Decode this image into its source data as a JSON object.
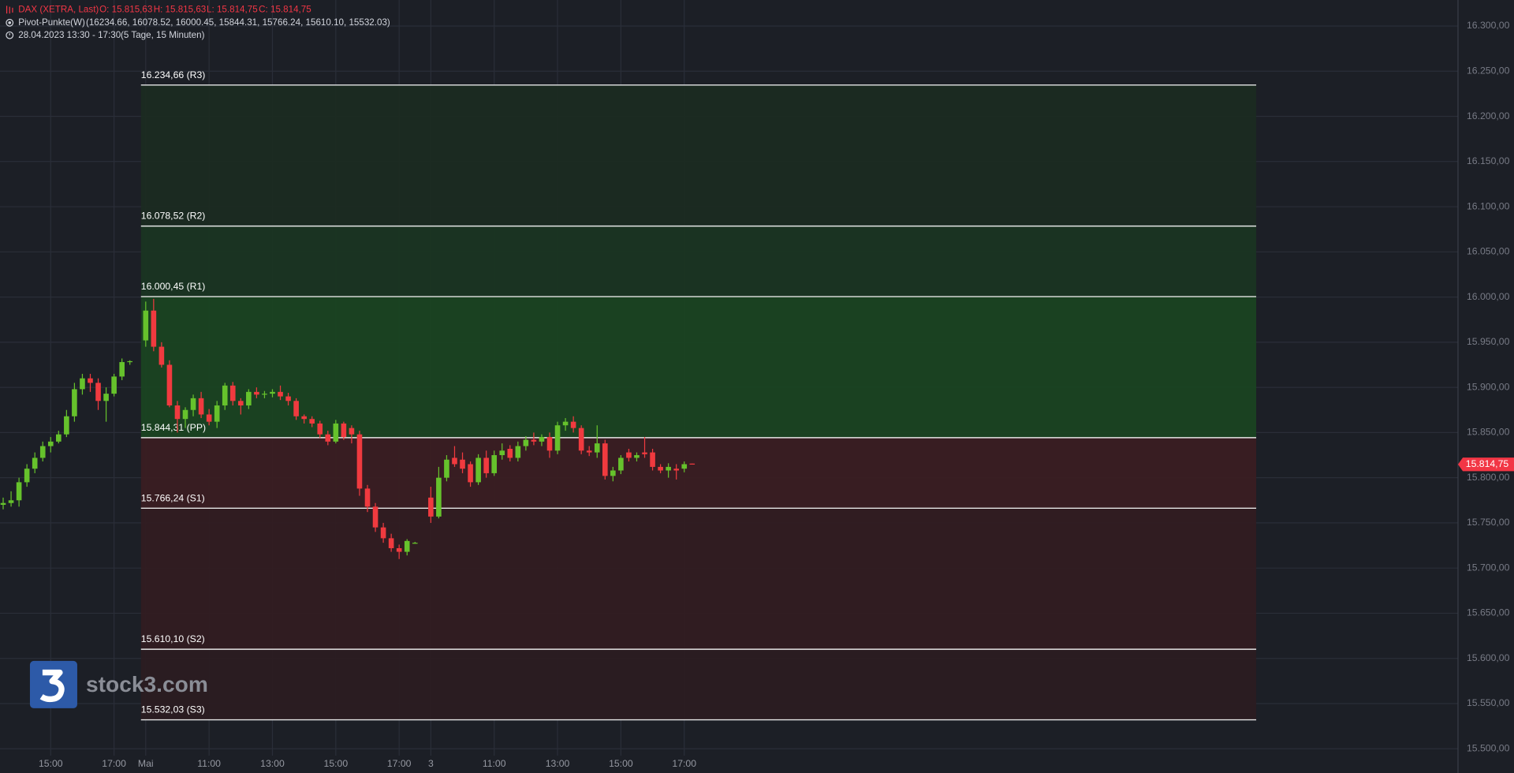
{
  "header": {
    "symbol": "DAX (XETRA, Last)",
    "open": "O: 15.815,63",
    "high": "H: 15.815,63",
    "low": "L: 15.814,75",
    "close": "C: 15.814,75",
    "indicator": "Pivot-Punkte(W)",
    "indicator_values": "(16234.66,  16078.52,  16000.45,  15844.31,  15766.24,  15610.10,  15532.03)",
    "range": "28.04.2023 13:30 - 17:30",
    "period": "(5 Tage, 15 Minuten)"
  },
  "logo": "stock3.com",
  "chart_data": {
    "type": "candlestick",
    "up_color": "#66c22c",
    "down_color": "#f03a3f",
    "grid": true,
    "xlim": [
      -18.4,
      165.7
    ],
    "ylim": [
      15492.4,
      16328.8
    ],
    "xticks": [
      {
        "value": -12,
        "label": "15:00"
      },
      {
        "value": -4,
        "label": "17:00"
      },
      {
        "value": 0,
        "label": "Mai"
      },
      {
        "value": 8,
        "label": "11:00"
      },
      {
        "value": 16,
        "label": "13:00"
      },
      {
        "value": 24,
        "label": "15:00"
      },
      {
        "value": 32,
        "label": "17:00"
      },
      {
        "value": 36,
        "label": "3"
      },
      {
        "value": 44,
        "label": "11:00"
      },
      {
        "value": 52,
        "label": "13:00"
      },
      {
        "value": 60,
        "label": "15:00"
      },
      {
        "value": 68,
        "label": "17:00"
      }
    ],
    "yticks": [
      {
        "value": 16300,
        "label": "16.300,00"
      },
      {
        "value": 16250,
        "label": "16.250,00"
      },
      {
        "value": 16200,
        "label": "16.200,00"
      },
      {
        "value": 16150,
        "label": "16.150,00"
      },
      {
        "value": 16100,
        "label": "16.100,00"
      },
      {
        "value": 16050,
        "label": "16.050,00"
      },
      {
        "value": 16000,
        "label": "16.000,00"
      },
      {
        "value": 15950,
        "label": "15.950,00"
      },
      {
        "value": 15900,
        "label": "15.900,00"
      },
      {
        "value": 15850,
        "label": "15.850,00"
      },
      {
        "value": 15800,
        "label": "15.800,00"
      },
      {
        "value": 15750,
        "label": "15.750,00"
      },
      {
        "value": 15700,
        "label": "15.700,00"
      },
      {
        "value": 15650,
        "label": "15.650,00"
      },
      {
        "value": 15600,
        "label": "15.600,00"
      },
      {
        "value": 15550,
        "label": "15.550,00"
      },
      {
        "value": 15500,
        "label": "15.500,00"
      }
    ],
    "x": [
      -18,
      -17,
      -16,
      -15,
      -14,
      -13,
      -12,
      -11,
      -10,
      -9,
      -8,
      -7,
      -6,
      -5,
      -4,
      -3,
      -2,
      0,
      1,
      2,
      3,
      4,
      5,
      6,
      7,
      8,
      9,
      10,
      11,
      12,
      13,
      14,
      15,
      16,
      17,
      18,
      19,
      20,
      21,
      22,
      23,
      24,
      25,
      26,
      27,
      28,
      29,
      30,
      31,
      32,
      33,
      34,
      36,
      37,
      38,
      39,
      40,
      41,
      42,
      43,
      44,
      45,
      46,
      47,
      48,
      49,
      50,
      51,
      52,
      53,
      54,
      55,
      56,
      57,
      58,
      59,
      60,
      61,
      62,
      63,
      64,
      65,
      66,
      67,
      68,
      69
    ],
    "open": [
      15770,
      15772,
      15775,
      15795,
      15810,
      15822,
      15835,
      15840,
      15848,
      15868,
      15898,
      15910,
      15905,
      15885,
      15893,
      15912,
      15928,
      15952,
      15985,
      15945,
      15925,
      15880,
      15865,
      15875,
      15888,
      15870,
      15862,
      15880,
      15902,
      15885,
      15880,
      15895,
      15892,
      15893,
      15895,
      15890,
      15885,
      15868,
      15865,
      15860,
      15848,
      15840,
      15860,
      15855,
      15848,
      15788,
      15768,
      15745,
      15733,
      15722,
      15718,
      15728,
      15778,
      15757,
      15800,
      15822,
      15820,
      15815,
      15795,
      15822,
      15805,
      15825,
      15832,
      15822,
      15835,
      15842,
      15840,
      15845,
      15830,
      15858,
      15862,
      15855,
      15830,
      15828,
      15838,
      15802,
      15808,
      15828,
      15822,
      15828,
      15828,
      15812,
      15808,
      15810,
      15810,
      15815.63
    ],
    "high": [
      15778,
      15785,
      15800,
      15815,
      15828,
      15840,
      15845,
      15852,
      15875,
      15905,
      15915,
      15915,
      15910,
      15900,
      15915,
      15932,
      15930,
      15995,
      15998,
      15950,
      15930,
      15885,
      15878,
      15892,
      15895,
      15876,
      15885,
      15905,
      15906,
      15888,
      15898,
      15900,
      15896,
      15898,
      15902,
      15894,
      15888,
      15870,
      15868,
      15863,
      15852,
      15864,
      15862,
      15858,
      15852,
      15792,
      15772,
      15750,
      15738,
      15726,
      15732,
      15729,
      15790,
      15812,
      15825,
      15835,
      15828,
      15818,
      15826,
      15830,
      15830,
      15838,
      15836,
      15840,
      15846,
      15850,
      15848,
      15850,
      15862,
      15866,
      15868,
      15858,
      15835,
      15858,
      15842,
      15812,
      15825,
      15832,
      15828,
      15845,
      15832,
      15815,
      15816,
      15815,
      15818,
      15815.63
    ],
    "low": [
      15765,
      15768,
      15768,
      15790,
      15805,
      15818,
      15828,
      15838,
      15845,
      15862,
      15892,
      15895,
      15875,
      15862,
      15890,
      15908,
      15925,
      15945,
      15940,
      15922,
      15878,
      15850,
      15855,
      15868,
      15866,
      15858,
      15855,
      15875,
      15880,
      15870,
      15876,
      15888,
      15888,
      15889,
      15886,
      15880,
      15864,
      15860,
      15856,
      15844,
      15836,
      15838,
      15842,
      15838,
      15780,
      15762,
      15740,
      15728,
      15718,
      15710,
      15714,
      15727,
      15750,
      15755,
      15796,
      15812,
      15805,
      15790,
      15792,
      15800,
      15802,
      15820,
      15818,
      15818,
      15830,
      15836,
      15835,
      15822,
      15826,
      15852,
      15850,
      15826,
      15824,
      15822,
      15798,
      15796,
      15804,
      15818,
      15818,
      15822,
      15808,
      15805,
      15800,
      15798,
      15806,
      15814.75
    ],
    "close": [
      15772,
      15775,
      15795,
      15810,
      15822,
      15835,
      15840,
      15848,
      15868,
      15898,
      15910,
      15905,
      15885,
      15893,
      15912,
      15928,
      15929,
      15985,
      15945,
      15925,
      15880,
      15865,
      15875,
      15888,
      15870,
      15862,
      15880,
      15902,
      15885,
      15880,
      15895,
      15892,
      15893,
      15895,
      15890,
      15885,
      15868,
      15865,
      15860,
      15848,
      15840,
      15860,
      15845,
      15848,
      15788,
      15768,
      15745,
      15733,
      15722,
      15718,
      15730,
      15728,
      15757,
      15800,
      15820,
      15815,
      15810,
      15795,
      15822,
      15805,
      15825,
      15830,
      15822,
      15835,
      15842,
      15840,
      15845,
      15830,
      15858,
      15862,
      15855,
      15830,
      15828,
      15838,
      15802,
      15808,
      15822,
      15822,
      15825,
      15826,
      15812,
      15808,
      15812,
      15808,
      15815,
      15814.75
    ],
    "last_price": {
      "value": 15814.75,
      "label": "15.814,75"
    },
    "last_color": "#f23645",
    "pivots": {
      "line_color": "#e6e6e6",
      "levels": [
        {
          "value": 16234.66,
          "label": "16.234,66 (R3)"
        },
        {
          "value": 16078.52,
          "label": "16.078,52 (R2)"
        },
        {
          "value": 16000.45,
          "label": "16.000,45 (R1)"
        },
        {
          "value": 15844.31,
          "label": "15.844,31 (PP)"
        },
        {
          "value": 15766.24,
          "label": "15.766,24 (S1)"
        },
        {
          "value": 15610.1,
          "label": "15.610,10 (S2)"
        },
        {
          "value": 15532.03,
          "label": "15.532,03 (S3)"
        }
      ],
      "zone_colors": [
        "#1b2b21",
        "#1a3522",
        "#1a4321",
        "#3a1d22",
        "#321c21",
        "#2b1c21"
      ]
    }
  }
}
